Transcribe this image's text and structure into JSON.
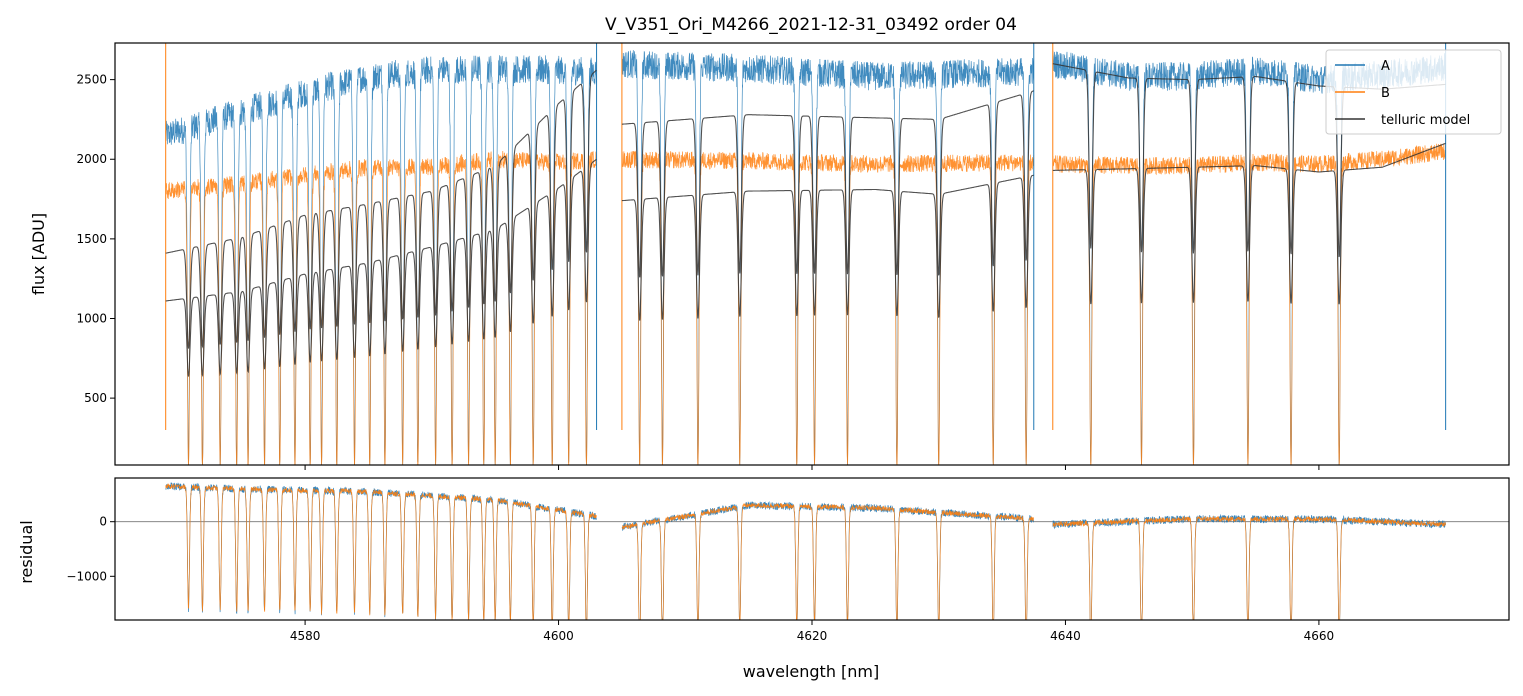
{
  "chart_data": {
    "type": "line",
    "title": "V_V351_Ori_M4266_2021-12-31_03492  order 04",
    "xlabel": "wavelength [nm]",
    "xlim": [
      4565,
      4675
    ],
    "x_ticks": [
      4580,
      4600,
      4620,
      4640,
      4660
    ],
    "x_tick_labels": [
      "4580",
      "4600",
      "4620",
      "4640",
      "4660"
    ],
    "colors": {
      "A": "#1f77b4",
      "B": "#ff7f0e",
      "telluric": "#333333",
      "zero_line": "#777777"
    },
    "legend": {
      "placement": "upper right",
      "entries": [
        "A",
        "B",
        "telluric model"
      ]
    },
    "segments": [
      {
        "start": 4569.0,
        "end": 4603.0
      },
      {
        "start": 4605.0,
        "end": 4637.5
      },
      {
        "start": 4639.0,
        "end": 4670.0
      }
    ],
    "absorption_lines": [
      4570.8,
      4571.9,
      4573.3,
      4574.6,
      4575.5,
      4576.8,
      4578.0,
      4579.2,
      4580.4,
      4581.3,
      4582.5,
      4583.9,
      4585.1,
      4586.3,
      4587.7,
      4588.9,
      4590.3,
      4591.6,
      4592.9,
      4594.1,
      4595.0,
      4596.2,
      4598.0,
      4599.5,
      4600.8,
      4602.2,
      4606.4,
      4608.2,
      4611.0,
      4614.3,
      4618.8,
      4620.2,
      4622.8,
      4626.7,
      4630.0,
      4634.3,
      4636.9,
      4642.0,
      4646.0,
      4650.1,
      4654.4,
      4657.8,
      4661.6
    ],
    "panels": [
      {
        "name": "flux",
        "ylabel": "flux [ADU]",
        "ylim": [
          80,
          2730
        ],
        "y_ticks": [
          500,
          1000,
          1500,
          2000,
          2500
        ],
        "y_tick_labels": [
          "500",
          "1000",
          "1500",
          "2000",
          "2500"
        ],
        "series": [
          {
            "name": "A",
            "baseline": [
              [
                4569,
                2150
              ],
              [
                4575,
                2300
              ],
              [
                4580,
                2420
              ],
              [
                4585,
                2520
              ],
              [
                4590,
                2560
              ],
              [
                4595,
                2570
              ],
              [
                4600,
                2560
              ],
              [
                4603,
                2550
              ],
              [
                4605,
                2600
              ],
              [
                4615,
                2570
              ],
              [
                4625,
                2520
              ],
              [
                4637,
                2550
              ],
              [
                4639,
                2600
              ],
              [
                4645,
                2520
              ],
              [
                4650,
                2520
              ],
              [
                4655,
                2560
              ],
              [
                4660,
                2500
              ],
              [
                4665,
                2530
              ],
              [
                4670,
                2580
              ]
            ],
            "min_flux": 80
          },
          {
            "name": "B",
            "baseline": [
              [
                4569,
                1800
              ],
              [
                4575,
                1850
              ],
              [
                4580,
                1900
              ],
              [
                4585,
                1950
              ],
              [
                4590,
                1950
              ],
              [
                4595,
                2000
              ],
              [
                4600,
                1980
              ],
              [
                4603,
                2000
              ],
              [
                4605,
                2000
              ],
              [
                4615,
                1990
              ],
              [
                4625,
                1970
              ],
              [
                4637,
                1980
              ],
              [
                4639,
                1970
              ],
              [
                4645,
                1960
              ],
              [
                4650,
                1960
              ],
              [
                4655,
                1980
              ],
              [
                4660,
                1970
              ],
              [
                4665,
                2000
              ],
              [
                4670,
                2050
              ]
            ],
            "min_flux": 80
          },
          {
            "name": "telluric model",
            "curves": [
              {
                "segment": 0,
                "points": [
                  [
                    4569,
                    1410
                  ],
                  [
                    4575,
                    1510
                  ],
                  [
                    4580,
                    1650
                  ],
                  [
                    4585,
                    1720
                  ],
                  [
                    4590,
                    1800
                  ],
                  [
                    4595,
                    1960
                  ],
                  [
                    4600,
                    2350
                  ],
                  [
                    4603,
                    2560
                  ]
                ]
              },
              {
                "segment": 0,
                "points": [
                  [
                    4569,
                    1110
                  ],
                  [
                    4575,
                    1170
                  ],
                  [
                    4580,
                    1280
                  ],
                  [
                    4585,
                    1350
                  ],
                  [
                    4590,
                    1450
                  ],
                  [
                    4595,
                    1560
                  ],
                  [
                    4600,
                    1820
                  ],
                  [
                    4603,
                    2000
                  ]
                ]
              },
              {
                "segment": 1,
                "points": [
                  [
                    4605,
                    2220
                  ],
                  [
                    4615,
                    2280
                  ],
                  [
                    4625,
                    2260
                  ],
                  [
                    4630,
                    2250
                  ],
                  [
                    4637.5,
                    2430
                  ]
                ]
              },
              {
                "segment": 1,
                "points": [
                  [
                    4605,
                    1740
                  ],
                  [
                    4615,
                    1800
                  ],
                  [
                    4625,
                    1810
                  ],
                  [
                    4630,
                    1780
                  ],
                  [
                    4637.5,
                    1900
                  ]
                ]
              },
              {
                "segment": 2,
                "points": [
                  [
                    4639,
                    2600
                  ],
                  [
                    4645,
                    2510
                  ],
                  [
                    4650,
                    2500
                  ],
                  [
                    4655,
                    2520
                  ],
                  [
                    4660,
                    2460
                  ],
                  [
                    4665,
                    2440
                  ],
                  [
                    4670,
                    2470
                  ]
                ]
              },
              {
                "segment": 2,
                "points": [
                  [
                    4639,
                    1930
                  ],
                  [
                    4645,
                    1940
                  ],
                  [
                    4650,
                    1950
                  ],
                  [
                    4655,
                    1960
                  ],
                  [
                    4660,
                    1920
                  ],
                  [
                    4665,
                    1950
                  ],
                  [
                    4670,
                    2100
                  ]
                ]
              }
            ]
          }
        ]
      },
      {
        "name": "residual",
        "ylabel": "residual",
        "ylim": [
          -1800,
          800
        ],
        "y_ticks": [
          -1000,
          0
        ],
        "y_tick_labels": [
          "−1000",
          "0"
        ],
        "zero_line": 0,
        "residual_baseline": [
          [
            4569,
            650
          ],
          [
            4575,
            600
          ],
          [
            4585,
            550
          ],
          [
            4595,
            400
          ],
          [
            4603,
            100
          ],
          [
            4605,
            -100
          ],
          [
            4615,
            300
          ],
          [
            4625,
            250
          ],
          [
            4637.5,
            50
          ],
          [
            4639,
            -50
          ],
          [
            4650,
            50
          ],
          [
            4660,
            50
          ],
          [
            4670,
            -50
          ]
        ]
      }
    ]
  }
}
